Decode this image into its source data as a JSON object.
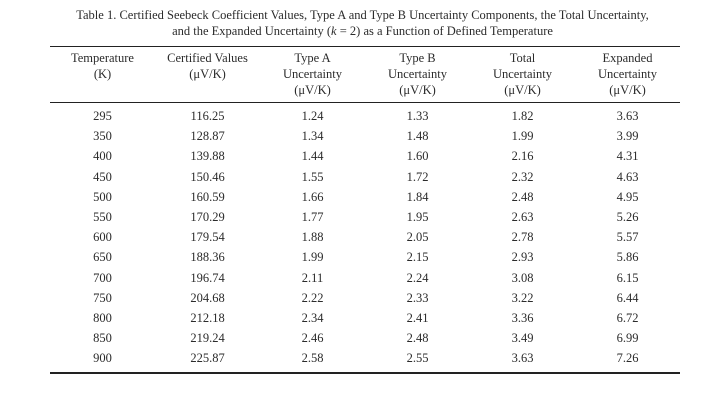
{
  "page": {
    "background": "#ffffff",
    "text_color": "#2b2b2b",
    "rule_color": "#222222"
  },
  "caption": {
    "line1": "Table 1.  Certified Seebeck Coefficient Values, Type A and Type B Uncertainty Components, the Total Uncertainty,",
    "line2_pre": "and the Expanded Uncertainty (",
    "line2_italic": "k",
    "line2_post": " = 2) as a Function of Defined Temperature"
  },
  "table": {
    "columns": [
      {
        "line1": "Temperature",
        "line2": "(K)",
        "line3": ""
      },
      {
        "line1": "Certified Values",
        "line2": "(μV/K)",
        "line3": ""
      },
      {
        "line1": "Type A",
        "line2": "Uncertainty",
        "line3": "(μV/K)"
      },
      {
        "line1": "Type B",
        "line2": "Uncertainty",
        "line3": "(μV/K)"
      },
      {
        "line1": "Total",
        "line2": "Uncertainty",
        "line3": "(μV/K)"
      },
      {
        "line1": "Expanded",
        "line2": "Uncertainty",
        "line3": "(μV/K)"
      }
    ],
    "rows": [
      [
        "295",
        "116.25",
        "1.24",
        "1.33",
        "1.82",
        "3.63"
      ],
      [
        "350",
        "128.87",
        "1.34",
        "1.48",
        "1.99",
        "3.99"
      ],
      [
        "400",
        "139.88",
        "1.44",
        "1.60",
        "2.16",
        "4.31"
      ],
      [
        "450",
        "150.46",
        "1.55",
        "1.72",
        "2.32",
        "4.63"
      ],
      [
        "500",
        "160.59",
        "1.66",
        "1.84",
        "2.48",
        "4.95"
      ],
      [
        "550",
        "170.29",
        "1.77",
        "1.95",
        "2.63",
        "5.26"
      ],
      [
        "600",
        "179.54",
        "1.88",
        "2.05",
        "2.78",
        "5.57"
      ],
      [
        "650",
        "188.36",
        "1.99",
        "2.15",
        "2.93",
        "5.86"
      ],
      [
        "700",
        "196.74",
        "2.11",
        "2.24",
        "3.08",
        "6.15"
      ],
      [
        "750",
        "204.68",
        "2.22",
        "2.33",
        "3.22",
        "6.44"
      ],
      [
        "800",
        "212.18",
        "2.34",
        "2.41",
        "3.36",
        "6.72"
      ],
      [
        "850",
        "219.24",
        "2.46",
        "2.48",
        "3.49",
        "6.99"
      ],
      [
        "900",
        "225.87",
        "2.58",
        "2.55",
        "3.63",
        "7.26"
      ]
    ]
  }
}
